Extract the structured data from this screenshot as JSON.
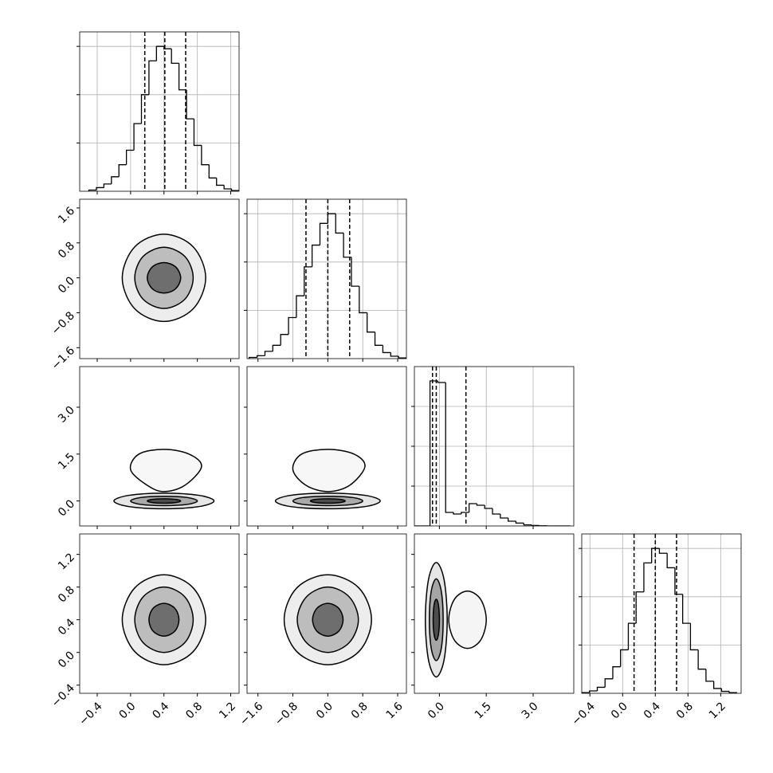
{
  "chart_data": {
    "type": "corner",
    "grid": true,
    "line_color": "#000000",
    "grid_color": "#b0b0b0",
    "params": [
      {
        "xlim": [
          -0.61,
          1.3
        ],
        "ticks": [
          {
            "value": -0.4,
            "label": "−0.4"
          },
          {
            "value": 0,
            "label": "0.0"
          },
          0.4,
          0.8,
          1.2
        ],
        "bins": [
          -0.5,
          -0.41,
          -0.32,
          -0.23,
          -0.14,
          -0.05,
          0.04,
          0.13,
          0.22,
          0.31,
          0.4,
          0.49,
          0.58,
          0.67,
          0.76,
          0.85,
          0.94,
          1.03,
          1.12,
          1.21,
          1.3
        ],
        "counts": [
          5,
          15,
          30,
          60,
          110,
          170,
          280,
          400,
          540,
          600,
          590,
          530,
          420,
          300,
          190,
          110,
          55,
          25,
          10,
          3
        ],
        "hist_ylim": [
          0,
          660
        ],
        "hist_yticks": [
          200,
          400,
          600
        ],
        "quantiles": [
          0.17,
          0.41,
          0.66
        ]
      },
      {
        "xlim": [
          -1.85,
          1.8
        ],
        "ticks": [
          {
            "value": -1.6,
            "label": "−1.6"
          },
          {
            "value": -0.8,
            "label": "−0.8"
          },
          {
            "value": 0,
            "label": "0.0"
          },
          0.8,
          1.6
        ],
        "bins": [
          -1.8,
          -1.62,
          -1.44,
          -1.26,
          -1.08,
          -0.9,
          -0.72,
          -0.54,
          -0.36,
          -0.18,
          0,
          0.18,
          0.36,
          0.54,
          0.72,
          0.9,
          1.08,
          1.26,
          1.44,
          1.62,
          1.8
        ],
        "counts": [
          5,
          12,
          30,
          55,
          100,
          170,
          260,
          380,
          470,
          560,
          600,
          520,
          420,
          300,
          190,
          110,
          55,
          25,
          10,
          3
        ],
        "hist_ylim": [
          0,
          660
        ],
        "hist_yticks": [
          200,
          400,
          600
        ],
        "quantiles": [
          -0.5,
          0,
          0.5
        ]
      },
      {
        "xlim": [
          -0.8,
          4.3
        ],
        "ticks": [
          {
            "value": 0,
            "label": "0.0"
          },
          {
            "value": 1.5,
            "label": "1.5"
          },
          {
            "value": 3,
            "label": "3.0"
          }
        ],
        "bins": [
          -0.8,
          -0.55,
          -0.3,
          -0.05,
          0.2,
          0.45,
          0.7,
          0.95,
          1.2,
          1.45,
          1.7,
          1.95,
          2.2,
          2.45,
          2.7,
          2.95,
          3.2,
          3.45,
          3.7,
          3.95,
          4.2
        ],
        "counts": [
          0,
          0,
          910,
          900,
          85,
          75,
          85,
          140,
          130,
          110,
          75,
          50,
          30,
          18,
          7,
          3,
          1,
          0,
          0,
          0
        ],
        "hist_ylim": [
          0,
          1000
        ],
        "hist_yticks": [
          250,
          500,
          750
        ],
        "quantiles": [
          -0.22,
          -0.1,
          0.85
        ]
      },
      {
        "xlim": [
          -0.5,
          1.45
        ],
        "ticks": [
          {
            "value": -0.4,
            "label": "−0.4"
          },
          {
            "value": 0,
            "label": "0.0"
          },
          0.4,
          0.8,
          1.2
        ],
        "bins": [
          -0.5,
          -0.405,
          -0.31,
          -0.215,
          -0.12,
          -0.025,
          0.07,
          0.165,
          0.26,
          0.355,
          0.45,
          0.545,
          0.64,
          0.735,
          0.83,
          0.925,
          1.02,
          1.115,
          1.21,
          1.305,
          1.4
        ],
        "counts": [
          3,
          10,
          25,
          60,
          110,
          180,
          290,
          420,
          540,
          600,
          580,
          520,
          410,
          290,
          180,
          100,
          50,
          20,
          8,
          3
        ],
        "hist_ylim": [
          0,
          660
        ],
        "hist_yticks": [
          200,
          400,
          600
        ],
        "quantiles": [
          0.14,
          0.4,
          0.66
        ]
      }
    ],
    "panels": [
      {
        "contours": [
          {
            "fill": "#ededed",
            "x": [
              0.9,
              0.75,
              0.4,
              0.05,
              -0.1,
              0.05,
              0.4,
              0.75
            ],
            "y": [
              0,
              0.71,
              1.0,
              0.71,
              0,
              -0.71,
              -1.0,
              -0.71
            ]
          },
          {
            "fill": "#bdbdbd",
            "x": [
              0.75,
              0.65,
              0.4,
              0.15,
              0.05,
              0.15,
              0.4,
              0.65
            ],
            "y": [
              0,
              0.49,
              0.7,
              0.49,
              0,
              -0.49,
              -0.7,
              -0.49
            ]
          },
          {
            "fill": "#6e6e6e",
            "x": [
              0.6,
              0.54,
              0.4,
              0.26,
              0.2,
              0.26,
              0.4,
              0.54
            ],
            "y": [
              0,
              0.25,
              0.35,
              0.25,
              0,
              -0.25,
              -0.35,
              -0.25
            ]
          }
        ]
      },
      {
        "contours": [
          {
            "fill": "#f7f7f7",
            "x": [
              0.85,
              0.7,
              0.4,
              0.1,
              0.0,
              0.2,
              0.4,
              0.65
            ],
            "y": [
              1.1,
              1.5,
              1.65,
              1.5,
              1.0,
              0.5,
              0.3,
              0.5
            ]
          },
          {
            "fill": "#e6e6e6",
            "x": [
              1.0,
              0.82,
              0.4,
              -0.02,
              -0.2,
              -0.02,
              0.4,
              0.82
            ],
            "y": [
              0,
              0.18,
              0.25,
              0.18,
              0,
              -0.18,
              -0.25,
              -0.18
            ]
          },
          {
            "fill": "#aaaaaa",
            "x": [
              0.8,
              0.68,
              0.4,
              0.12,
              0.0,
              0.12,
              0.4,
              0.68
            ],
            "y": [
              0,
              0.11,
              0.15,
              0.11,
              0,
              -0.11,
              -0.15,
              -0.11
            ]
          },
          {
            "fill": "#4d4d4d",
            "x": [
              0.6,
              0.54,
              0.4,
              0.26,
              0.2,
              0.26,
              0.4,
              0.54
            ],
            "y": [
              0,
              0.05,
              0.07,
              0.05,
              0,
              -0.05,
              -0.07,
              -0.05
            ]
          }
        ]
      },
      {
        "contours": [
          {
            "fill": "#f7f7f7",
            "x": [
              0.85,
              0.6,
              0,
              -0.6,
              -0.8,
              -0.5,
              0,
              0.5
            ],
            "y": [
              1.1,
              1.5,
              1.65,
              1.5,
              1.0,
              0.5,
              0.3,
              0.5
            ]
          },
          {
            "fill": "#e6e6e6",
            "x": [
              1.2,
              0.85,
              0,
              -0.85,
              -1.2,
              -0.85,
              0,
              0.85
            ],
            "y": [
              0,
              0.18,
              0.25,
              0.18,
              0,
              -0.18,
              -0.25,
              -0.18
            ]
          },
          {
            "fill": "#aaaaaa",
            "x": [
              0.8,
              0.57,
              0,
              -0.57,
              -0.8,
              -0.57,
              0,
              0.57
            ],
            "y": [
              0,
              0.11,
              0.15,
              0.11,
              0,
              -0.11,
              -0.15,
              -0.11
            ]
          },
          {
            "fill": "#4d4d4d",
            "x": [
              0.4,
              0.28,
              0,
              -0.28,
              -0.4,
              -0.28,
              0,
              0.28
            ],
            "y": [
              0,
              0.05,
              0.07,
              0.05,
              0,
              -0.05,
              -0.07,
              -0.05
            ]
          }
        ]
      },
      {
        "contours": [
          {
            "fill": "#ededed",
            "x": [
              0.9,
              0.75,
              0.4,
              0.05,
              -0.1,
              0.05,
              0.4,
              0.75
            ],
            "y": [
              0.4,
              0.79,
              0.95,
              0.79,
              0.4,
              0.01,
              -0.15,
              0.01
            ]
          },
          {
            "fill": "#bdbdbd",
            "x": [
              0.75,
              0.65,
              0.4,
              0.15,
              0.05,
              0.15,
              0.4,
              0.65
            ],
            "y": [
              0.4,
              0.68,
              0.8,
              0.68,
              0.4,
              0.12,
              0.0,
              0.12
            ]
          },
          {
            "fill": "#6e6e6e",
            "x": [
              0.58,
              0.53,
              0.4,
              0.27,
              0.22,
              0.27,
              0.4,
              0.53
            ],
            "y": [
              0.4,
              0.54,
              0.6,
              0.54,
              0.4,
              0.26,
              0.2,
              0.26
            ]
          }
        ]
      },
      {
        "contours": [
          {
            "fill": "#ededed",
            "x": [
              1.0,
              0.71,
              0,
              -0.71,
              -1.0,
              -0.71,
              0,
              0.71
            ],
            "y": [
              0.4,
              0.79,
              0.95,
              0.79,
              0.4,
              0.01,
              -0.15,
              0.01
            ]
          },
          {
            "fill": "#bdbdbd",
            "x": [
              0.7,
              0.49,
              0,
              -0.49,
              -0.7,
              -0.49,
              0,
              0.49
            ],
            "y": [
              0.4,
              0.68,
              0.8,
              0.68,
              0.4,
              0.12,
              0.0,
              0.12
            ]
          },
          {
            "fill": "#6e6e6e",
            "x": [
              0.35,
              0.25,
              0,
              -0.25,
              -0.35,
              -0.25,
              0,
              0.25
            ],
            "y": [
              0.4,
              0.54,
              0.6,
              0.54,
              0.4,
              0.26,
              0.2,
              0.26
            ]
          }
        ]
      },
      {
        "contours": [
          {
            "fill": "#f5f5f5",
            "x": [
              1.5,
              1.32,
              0.9,
              0.48,
              0.3,
              0.48,
              0.9,
              1.32
            ],
            "y": [
              0.4,
              0.65,
              0.75,
              0.65,
              0.4,
              0.15,
              0.05,
              0.15
            ]
          },
          {
            "fill": "#e6e6e6",
            "x": [
              0.25,
              0.15,
              -0.1,
              -0.35,
              -0.45,
              -0.35,
              -0.1,
              0.15
            ],
            "y": [
              0.4,
              0.89,
              1.1,
              0.89,
              0.4,
              -0.09,
              -0.3,
              -0.09
            ]
          },
          {
            "fill": "#a5a5a5",
            "x": [
              0.12,
              0.06,
              -0.1,
              -0.26,
              -0.32,
              -0.26,
              -0.1,
              0.06
            ],
            "y": [
              0.4,
              0.75,
              0.9,
              0.75,
              0.4,
              0.05,
              -0.1,
              0.05
            ]
          },
          {
            "fill": "#4d4d4d",
            "x": [
              0.0,
              -0.03,
              -0.1,
              -0.17,
              -0.2,
              -0.17,
              -0.1,
              -0.03
            ],
            "y": [
              0.4,
              0.58,
              0.65,
              0.58,
              0.4,
              0.22,
              0.15,
              0.22
            ]
          }
        ]
      }
    ]
  }
}
